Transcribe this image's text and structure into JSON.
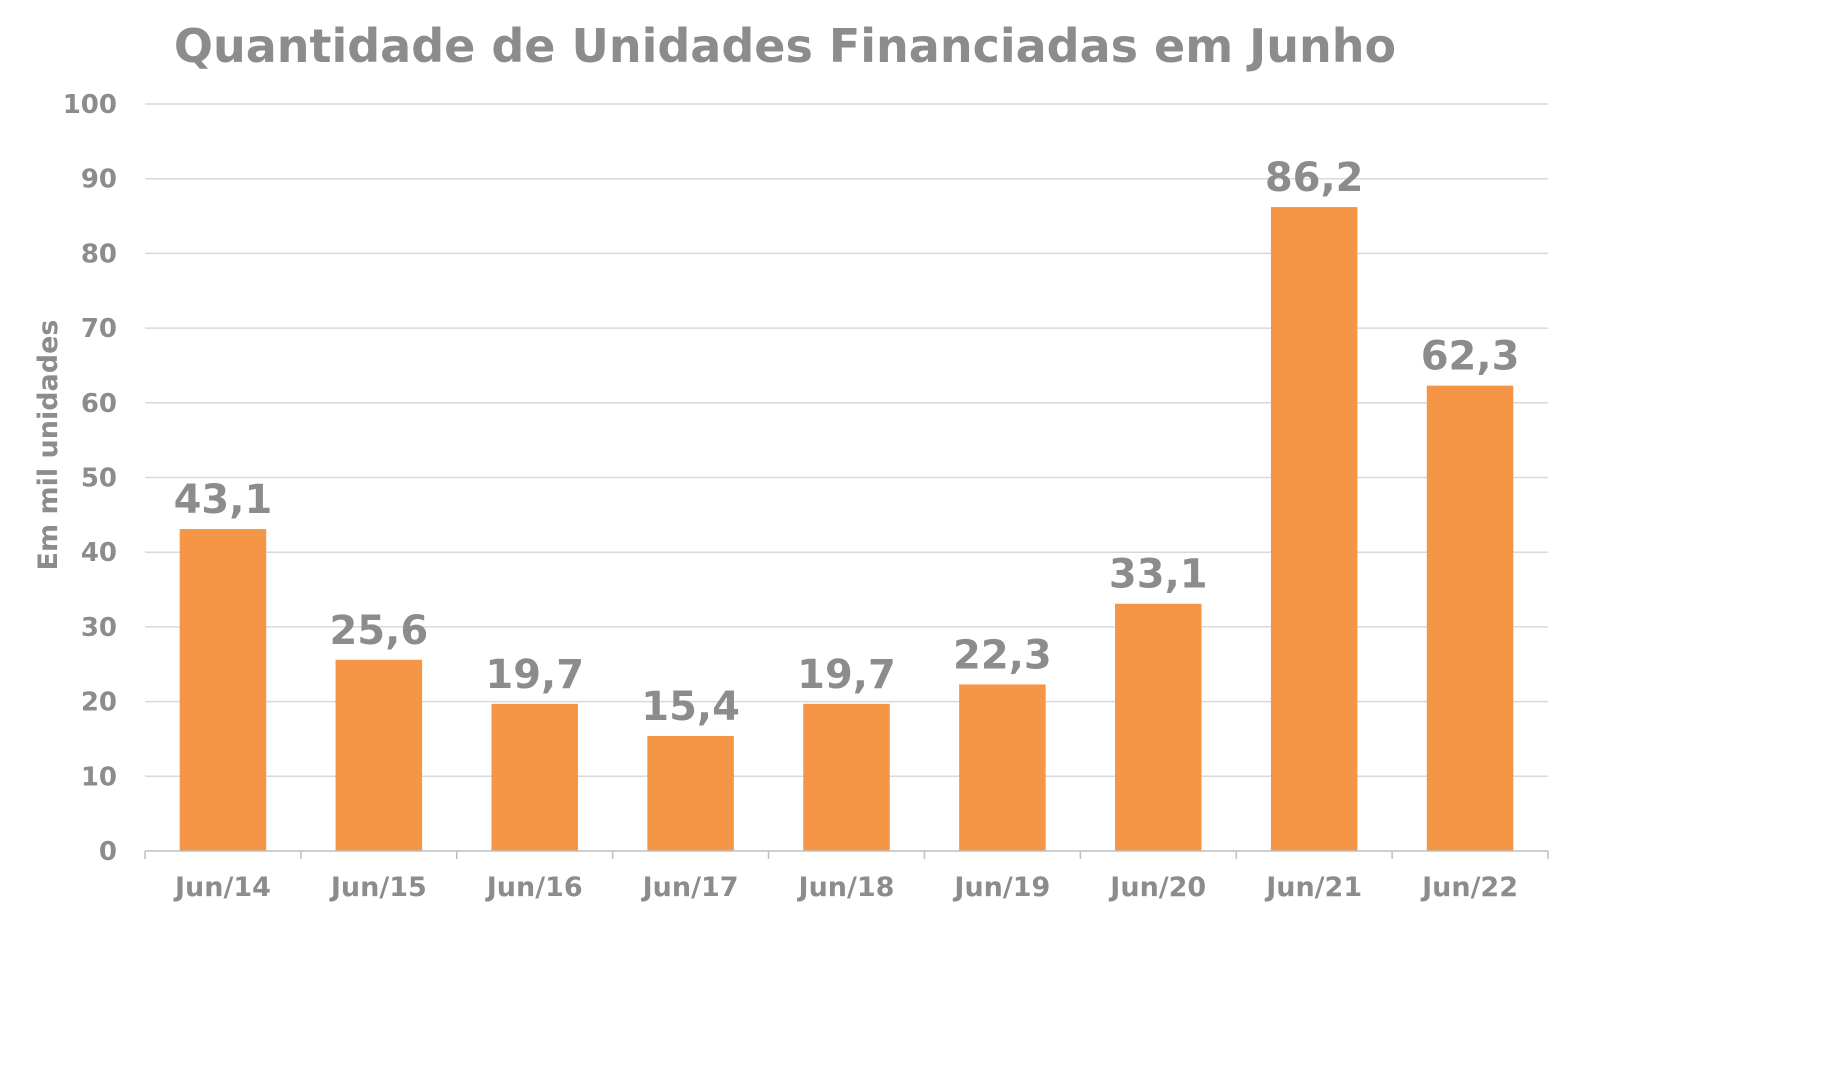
{
  "chart_data": {
    "type": "bar",
    "title": "Quantidade de Unidades Financiadas em Junho",
    "xlabel": "",
    "ylabel": "Em mil unidades",
    "categories": [
      "Jun/14",
      "Jun/15",
      "Jun/16",
      "Jun/17",
      "Jun/18",
      "Jun/19",
      "Jun/20",
      "Jun/21",
      "Jun/22"
    ],
    "values": [
      43.1,
      25.6,
      19.7,
      15.4,
      19.7,
      22.3,
      33.1,
      86.2,
      62.3
    ],
    "data_labels": [
      "43,1",
      "25,6",
      "19,7",
      "15,4",
      "19,7",
      "22,3",
      "33,1",
      "86,2",
      "62,3"
    ],
    "ylim": [
      0,
      100
    ],
    "yticks": [
      0,
      10,
      20,
      30,
      40,
      50,
      60,
      70,
      80,
      90,
      100
    ],
    "grid": true,
    "legend": "none",
    "colors": {
      "bar": "#F59646",
      "text": "#8C8C8C",
      "grid": "#D9D9D9",
      "axis": "#BFBFBF"
    }
  }
}
